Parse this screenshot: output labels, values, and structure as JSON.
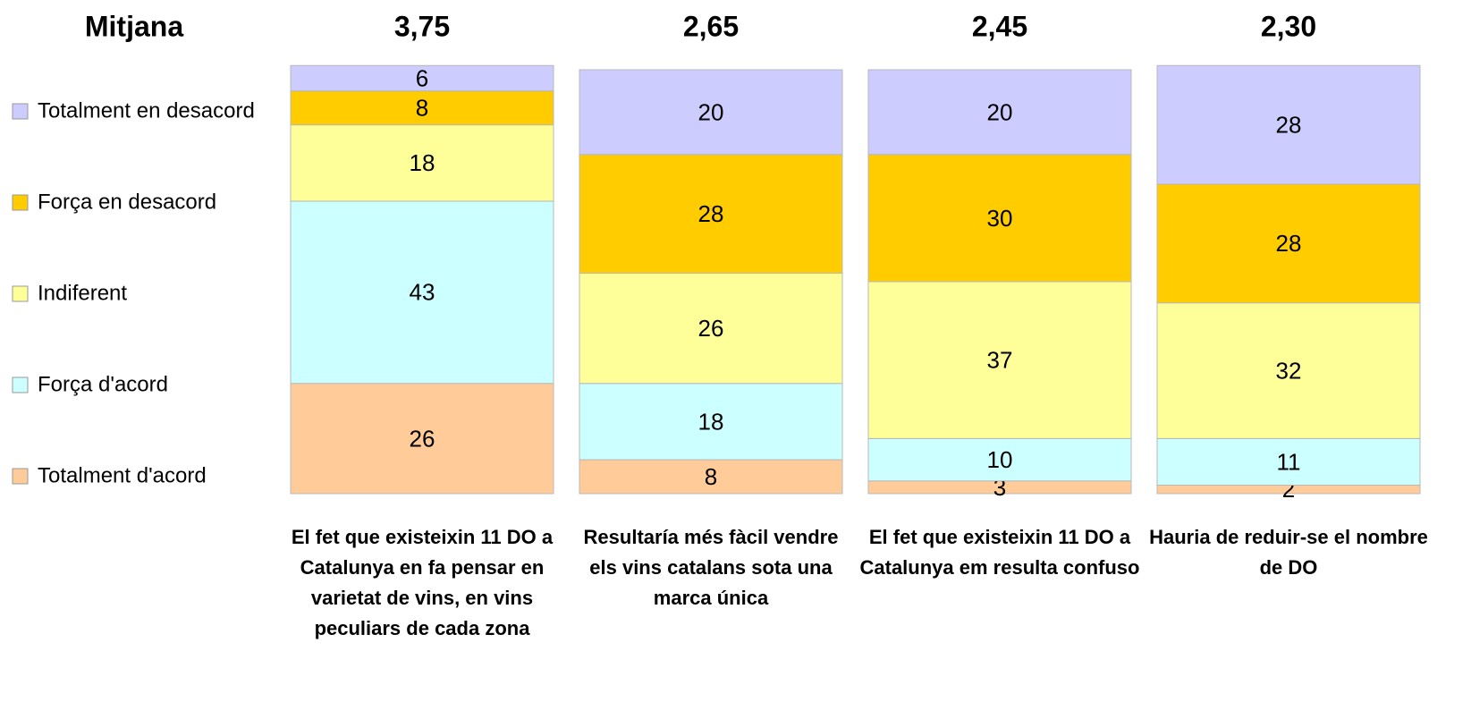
{
  "chart_data": {
    "type": "stacked_bar",
    "mean_title": "Mitjana",
    "means": [
      3.75,
      2.65,
      2.45,
      2.3
    ],
    "mean_labels": [
      "3,75",
      "2,65",
      "2,45",
      "2,30"
    ],
    "categories": [
      "El fet que existeixin 11 DO a Catalunya en fa pensar en varietat de vins, en vins peculiars de cada zona",
      "Resultaría més fàcil vendre els vins catalans sota una marca única",
      "El fet que existeixin 11 DO a Catalunya em resulta confuso",
      "Hauria de reduir-se el nombre de DO"
    ],
    "series": [
      {
        "name": "Totalment d'acord",
        "color": "#ffcc99",
        "values": [
          26,
          8,
          3,
          2
        ]
      },
      {
        "name": "Força d'acord",
        "color": "#ccffff",
        "values": [
          43,
          18,
          10,
          11
        ]
      },
      {
        "name": "Indiferent",
        "color": "#ffff99",
        "values": [
          18,
          26,
          37,
          32
        ]
      },
      {
        "name": "Força en desacord",
        "color": "#ffcc00",
        "values": [
          8,
          28,
          30,
          28
        ]
      },
      {
        "name": "Totalment en desacord",
        "color": "#ccccff",
        "values": [
          6,
          20,
          20,
          28
        ]
      }
    ],
    "ylim": [
      0,
      100
    ],
    "legend": "left"
  }
}
